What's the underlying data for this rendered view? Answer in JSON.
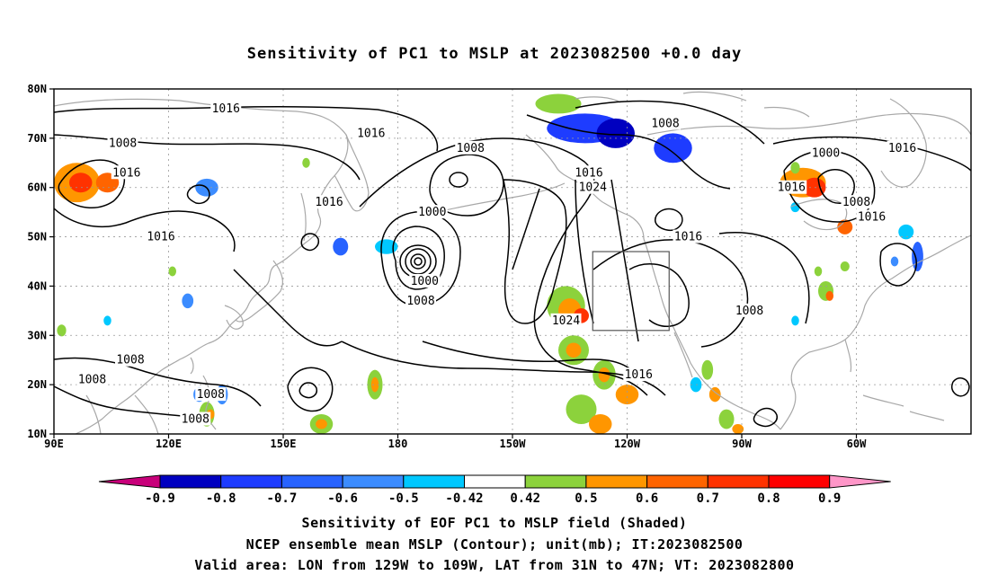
{
  "title": "Sensitivity of PC1 to MSLP at 2023082500 +0.0 day",
  "axes": {
    "lon_ticks": [
      "90E",
      "120E",
      "150E",
      "180",
      "150W",
      "120W",
      "90W",
      "60W"
    ],
    "lat_ticks": [
      "80N",
      "70N",
      "60N",
      "50N",
      "40N",
      "30N",
      "20N",
      "10N"
    ]
  },
  "contour_labels": [
    {
      "text": "1016",
      "lon": 135,
      "lat": 76
    },
    {
      "text": "1016",
      "lon": 173,
      "lat": 71
    },
    {
      "text": "1008",
      "lon": 108,
      "lat": 69
    },
    {
      "text": "1016",
      "lon": 109,
      "lat": 63
    },
    {
      "text": "1008",
      "lon": 199,
      "lat": 68
    },
    {
      "text": "1008",
      "lon": 250,
      "lat": 73
    },
    {
      "text": "1016",
      "lon": 230,
      "lat": 63
    },
    {
      "text": "1024",
      "lon": 231,
      "lat": 60
    },
    {
      "text": "1016",
      "lon": 162,
      "lat": 57
    },
    {
      "text": "1000",
      "lon": 189,
      "lat": 55
    },
    {
      "text": "1016",
      "lon": 118,
      "lat": 50
    },
    {
      "text": "1000",
      "lon": 187,
      "lat": 41
    },
    {
      "text": "1008",
      "lon": 186,
      "lat": 37
    },
    {
      "text": "1016",
      "lon": 256,
      "lat": 50
    },
    {
      "text": "1008",
      "lon": 272,
      "lat": 35
    },
    {
      "text": "1024",
      "lon": 224,
      "lat": 33
    },
    {
      "text": "1016",
      "lon": 243,
      "lat": 22
    },
    {
      "text": "1000",
      "lon": 292,
      "lat": 67
    },
    {
      "text": "1016",
      "lon": 283,
      "lat": 60
    },
    {
      "text": "1008",
      "lon": 300,
      "lat": 57
    },
    {
      "text": "1016",
      "lon": 304,
      "lat": 54
    },
    {
      "text": "1016",
      "lon": 312,
      "lat": 68
    },
    {
      "text": "1008",
      "lon": 110,
      "lat": 25
    },
    {
      "text": "1008",
      "lon": 100,
      "lat": 21
    },
    {
      "text": "1008",
      "lon": 131,
      "lat": 18
    },
    {
      "text": "1008",
      "lon": 127,
      "lat": 13
    }
  ],
  "colorbar": {
    "labels": [
      "-0.9",
      "-0.8",
      "-0.7",
      "-0.6",
      "-0.5",
      "-0.42",
      "0.42",
      "0.5",
      "0.6",
      "0.7",
      "0.8",
      "0.9"
    ],
    "colors": [
      "#0000c0",
      "#1e3cff",
      "#2863ff",
      "#3c8cff",
      "#00c8ff",
      "#ffffff",
      "#8cd23c",
      "#ff9600",
      "#ff6400",
      "#ff3200",
      "#ff0000"
    ],
    "low_extend_color": "#c8007a",
    "high_extend_color": "#ff96c8"
  },
  "shaded_patches": [
    {
      "lon": 96,
      "lat": 61,
      "rx": 6,
      "ry": 4,
      "color": "#ff9600"
    },
    {
      "lon": 97,
      "lat": 61,
      "rx": 3,
      "ry": 2,
      "color": "#ff3200"
    },
    {
      "lon": 104,
      "lat": 61,
      "rx": 3,
      "ry": 2,
      "color": "#ff6400"
    },
    {
      "lon": 130,
      "lat": 60,
      "rx": 3,
      "ry": 1.8,
      "color": "#3c8cff"
    },
    {
      "lon": 165,
      "lat": 48,
      "rx": 2,
      "ry": 1.8,
      "color": "#2863ff"
    },
    {
      "lon": 177,
      "lat": 48,
      "rx": 3,
      "ry": 1.5,
      "color": "#00c8ff"
    },
    {
      "lon": 229,
      "lat": 72,
      "rx": 10,
      "ry": 3,
      "color": "#1e3cff"
    },
    {
      "lon": 237,
      "lat": 71,
      "rx": 5,
      "ry": 3,
      "color": "#0000c0"
    },
    {
      "lon": 252,
      "lat": 68,
      "rx": 5,
      "ry": 3,
      "color": "#1e3cff"
    },
    {
      "lon": 222,
      "lat": 77,
      "rx": 6,
      "ry": 2,
      "color": "#8cd23c"
    },
    {
      "lon": 286,
      "lat": 61,
      "rx": 6,
      "ry": 3,
      "color": "#ff9600"
    },
    {
      "lon": 289,
      "lat": 60,
      "rx": 3,
      "ry": 2,
      "color": "#ff3200"
    },
    {
      "lon": 297,
      "lat": 52,
      "rx": 2,
      "ry": 1.5,
      "color": "#ff6400"
    },
    {
      "lon": 313,
      "lat": 51,
      "rx": 2,
      "ry": 1.5,
      "color": "#00c8ff"
    },
    {
      "lon": 316,
      "lat": 46,
      "rx": 1.5,
      "ry": 3,
      "color": "#2863ff"
    },
    {
      "lon": 224,
      "lat": 36,
      "rx": 5,
      "ry": 4,
      "color": "#8cd23c"
    },
    {
      "lon": 225,
      "lat": 35,
      "rx": 3,
      "ry": 2.5,
      "color": "#ff9600"
    },
    {
      "lon": 228,
      "lat": 34,
      "rx": 2,
      "ry": 1.5,
      "color": "#ff3200"
    },
    {
      "lon": 226,
      "lat": 27,
      "rx": 4,
      "ry": 3,
      "color": "#8cd23c"
    },
    {
      "lon": 226,
      "lat": 27,
      "rx": 2,
      "ry": 1.5,
      "color": "#ff9600"
    },
    {
      "lon": 234,
      "lat": 22,
      "rx": 3,
      "ry": 3,
      "color": "#8cd23c"
    },
    {
      "lon": 234,
      "lat": 22,
      "rx": 1.5,
      "ry": 1.5,
      "color": "#ff9600"
    },
    {
      "lon": 228,
      "lat": 15,
      "rx": 4,
      "ry": 3,
      "color": "#8cd23c"
    },
    {
      "lon": 233,
      "lat": 12,
      "rx": 3,
      "ry": 2,
      "color": "#ff9600"
    },
    {
      "lon": 240,
      "lat": 18,
      "rx": 3,
      "ry": 2,
      "color": "#ff9600"
    },
    {
      "lon": 174,
      "lat": 20,
      "rx": 2,
      "ry": 3,
      "color": "#8cd23c"
    },
    {
      "lon": 174,
      "lat": 20,
      "rx": 1,
      "ry": 1.5,
      "color": "#ff9600"
    },
    {
      "lon": 160,
      "lat": 12,
      "rx": 3,
      "ry": 2,
      "color": "#8cd23c"
    },
    {
      "lon": 160,
      "lat": 12,
      "rx": 1.5,
      "ry": 1,
      "color": "#ff9600"
    },
    {
      "lon": 128,
      "lat": 18,
      "rx": 1.5,
      "ry": 1.5,
      "color": "#3c8cff"
    },
    {
      "lon": 134,
      "lat": 18,
      "rx": 1.5,
      "ry": 2,
      "color": "#3c8cff"
    },
    {
      "lon": 130,
      "lat": 14,
      "rx": 2,
      "ry": 2.5,
      "color": "#8cd23c"
    },
    {
      "lon": 131,
      "lat": 14,
      "rx": 1,
      "ry": 1,
      "color": "#ff9600"
    },
    {
      "lon": 125,
      "lat": 37,
      "rx": 1.5,
      "ry": 1.5,
      "color": "#3c8cff"
    },
    {
      "lon": 121,
      "lat": 43,
      "rx": 1,
      "ry": 1,
      "color": "#8cd23c"
    },
    {
      "lon": 92,
      "lat": 31,
      "rx": 1.2,
      "ry": 1.2,
      "color": "#8cd23c"
    },
    {
      "lon": 104,
      "lat": 33,
      "rx": 1,
      "ry": 1,
      "color": "#00c8ff"
    },
    {
      "lon": 261,
      "lat": 23,
      "rx": 1.5,
      "ry": 2,
      "color": "#8cd23c"
    },
    {
      "lon": 263,
      "lat": 18,
      "rx": 1.5,
      "ry": 1.5,
      "color": "#ff9600"
    },
    {
      "lon": 266,
      "lat": 13,
      "rx": 2,
      "ry": 2,
      "color": "#8cd23c"
    },
    {
      "lon": 269,
      "lat": 11,
      "rx": 1.5,
      "ry": 1,
      "color": "#ff9600"
    },
    {
      "lon": 258,
      "lat": 20,
      "rx": 1.5,
      "ry": 1.5,
      "color": "#00c8ff"
    },
    {
      "lon": 292,
      "lat": 39,
      "rx": 2,
      "ry": 2,
      "color": "#8cd23c"
    },
    {
      "lon": 293,
      "lat": 38,
      "rx": 1,
      "ry": 1,
      "color": "#ff6400"
    },
    {
      "lon": 284,
      "lat": 33,
      "rx": 1,
      "ry": 1,
      "color": "#00c8ff"
    },
    {
      "lon": 290,
      "lat": 43,
      "rx": 1,
      "ry": 1,
      "color": "#8cd23c"
    },
    {
      "lon": 284,
      "lat": 64,
      "rx": 1.2,
      "ry": 1.2,
      "color": "#8cd23c"
    },
    {
      "lon": 284,
      "lat": 56,
      "rx": 1.2,
      "ry": 1,
      "color": "#00c8ff"
    },
    {
      "lon": 297,
      "lat": 44,
      "rx": 1.2,
      "ry": 1,
      "color": "#8cd23c"
    },
    {
      "lon": 310,
      "lat": 45,
      "rx": 1,
      "ry": 1,
      "color": "#3c8cff"
    },
    {
      "lon": 156,
      "lat": 65,
      "rx": 1,
      "ry": 1,
      "color": "#8cd23c"
    }
  ],
  "valid_area": {
    "lon_min": 231,
    "lon_max": 251,
    "lat_min": 31,
    "lat_max": 47
  },
  "captions": [
    "Sensitivity of EOF PC1 to MSLP field (Shaded)",
    "NCEP ensemble mean MSLP (Contour); unit(mb); IT:2023082500",
    "Valid area: LON from 129W to 109W, LAT from 31N to 47N; VT: 2023082800"
  ]
}
